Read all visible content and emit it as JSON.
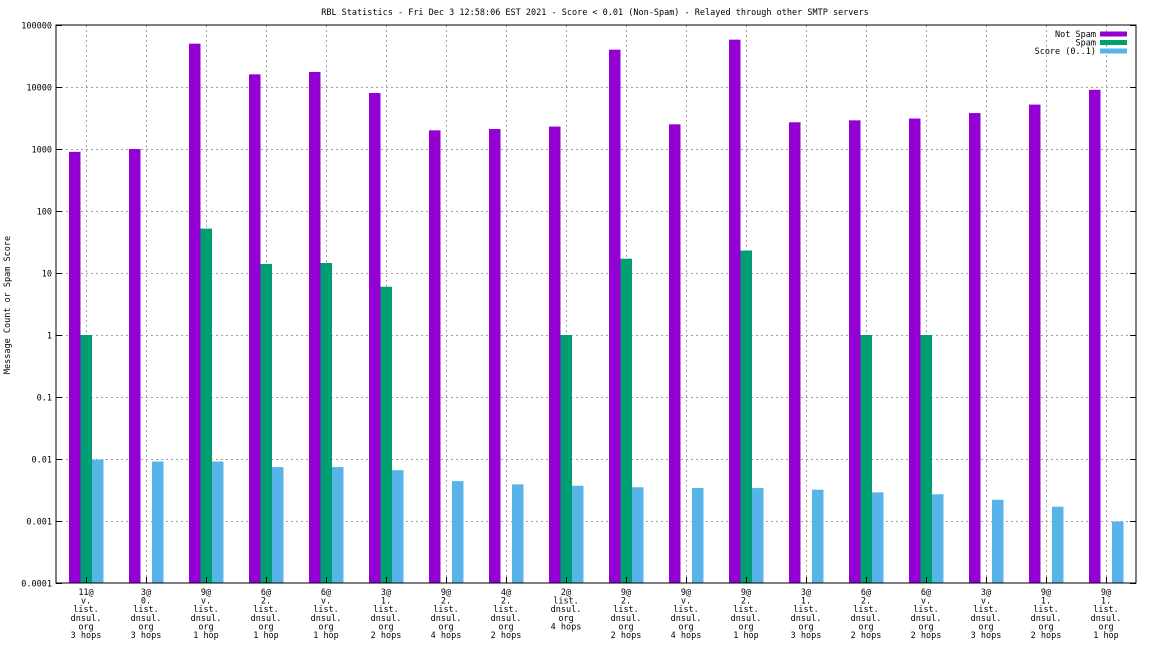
{
  "chart_data": {
    "type": "bar",
    "title": "RBL Statistics - Fri Dec  3 12:58:06 EST 2021 - Score < 0.01 (Non-Spam) - Relayed through other SMTP servers",
    "xlabel": "",
    "ylabel": "Message Count or Spam Score",
    "yscale": "log",
    "ylim": [
      0.0001,
      100000
    ],
    "grid": true,
    "legend_position": "top-right",
    "y_tick_labels": [
      "100000",
      "10000",
      "1000",
      "100",
      "10",
      "1",
      "0.1",
      "0.01",
      "0.001",
      "0.0001"
    ],
    "categories": [
      [
        "11@",
        "v.",
        "list.",
        "dnsul.",
        "org",
        "3 hops"
      ],
      [
        "3@",
        "0.",
        "list.",
        "dnsul.",
        "org",
        "3 hops"
      ],
      [
        "9@",
        "v.",
        "list.",
        "dnsul.",
        "org",
        "1 hop"
      ],
      [
        "6@",
        "2.",
        "list.",
        "dnsul.",
        "org",
        "1 hop"
      ],
      [
        "6@",
        "v.",
        "list.",
        "dnsul.",
        "org",
        "1 hop"
      ],
      [
        "3@",
        "1.",
        "list.",
        "dnsul.",
        "org",
        "2 hops"
      ],
      [
        "9@",
        "2.",
        "list.",
        "dnsul.",
        "org",
        "4 hops"
      ],
      [
        "4@",
        "2.",
        "list.",
        "dnsul.",
        "org",
        "2 hops"
      ],
      [
        "2@",
        "list.",
        "dnsul.",
        "org",
        "4 hops"
      ],
      [
        "9@",
        "2.",
        "list.",
        "dnsul.",
        "org",
        "2 hops"
      ],
      [
        "9@",
        "v.",
        "list.",
        "dnsul.",
        "org",
        "4 hops"
      ],
      [
        "9@",
        "2.",
        "list.",
        "dnsul.",
        "org",
        "1 hop"
      ],
      [
        "3@",
        "1.",
        "list.",
        "dnsul.",
        "org",
        "3 hops"
      ],
      [
        "6@",
        "2.",
        "list.",
        "dnsul.",
        "org",
        "2 hops"
      ],
      [
        "6@",
        "v.",
        "list.",
        "dnsul.",
        "org",
        "2 hops"
      ],
      [
        "3@",
        "v.",
        "list.",
        "dnsul.",
        "org",
        "3 hops"
      ],
      [
        "9@",
        "1.",
        "list.",
        "dnsul.",
        "org",
        "2 hops"
      ],
      [
        "9@",
        "1.",
        "list.",
        "dnsul.",
        "org",
        "1 hop"
      ]
    ],
    "series": [
      {
        "name": "Not Spam",
        "color": "#9400d3",
        "values": [
          900,
          1000,
          50000,
          16000,
          17500,
          8000,
          2000,
          2100,
          2300,
          40000,
          2500,
          58000,
          2700,
          2900,
          3100,
          3800,
          5200,
          9000
        ]
      },
      {
        "name": "Spam",
        "color": "#009e73",
        "values": [
          1,
          null,
          52,
          14,
          14.5,
          6,
          null,
          null,
          1,
          17,
          null,
          23,
          null,
          1,
          1,
          null,
          null,
          null
        ]
      },
      {
        "name": "Score (0..1)",
        "color": "#56b4e9",
        "values": [
          0.0098,
          0.0091,
          0.0091,
          0.0074,
          0.0074,
          0.0066,
          0.0044,
          0.0039,
          0.0037,
          0.0035,
          0.0034,
          0.0034,
          0.0032,
          0.0029,
          0.0027,
          0.0022,
          0.0017,
          0.00098
        ]
      }
    ]
  }
}
